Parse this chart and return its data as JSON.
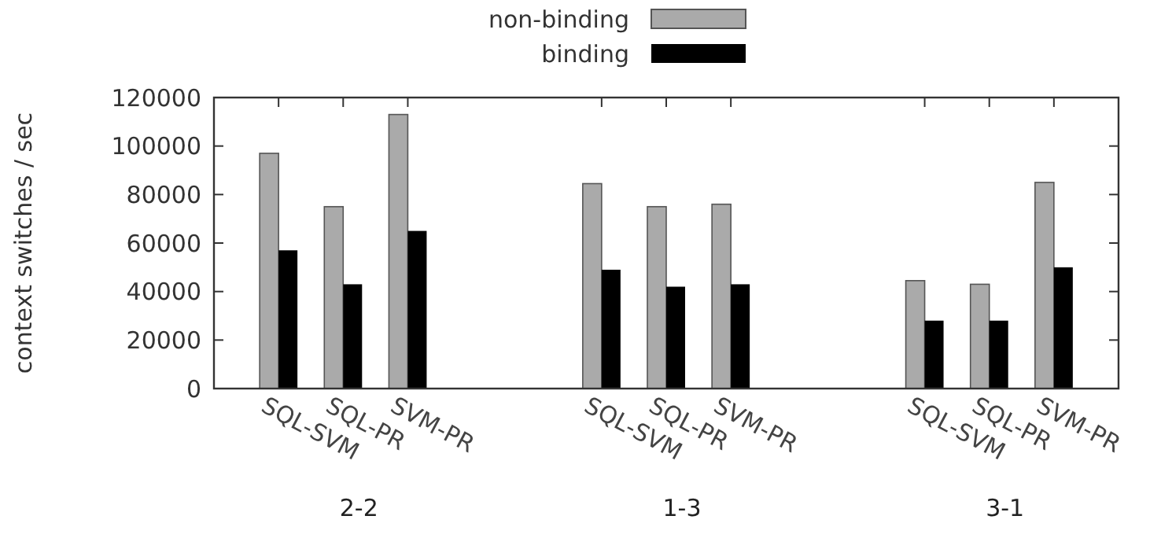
{
  "chart_data": {
    "type": "bar",
    "ylabel": "context switches / sec",
    "categories": [
      "SQL-SVM",
      "SQL-PR",
      "SVM-PR",
      null,
      null,
      "SQL-SVM",
      "SQL-PR",
      "SVM-PR",
      null,
      null,
      "SQL-SVM",
      "SQL-PR",
      "SVM-PR"
    ],
    "series": [
      {
        "name": "non-binding",
        "color": "#aaaaaa",
        "values": [
          97000,
          75000,
          113000,
          null,
          null,
          84500,
          75000,
          76000,
          null,
          null,
          44500,
          43000,
          85000
        ]
      },
      {
        "name": "binding",
        "color": "#000000",
        "values": [
          57000,
          43000,
          65000,
          null,
          null,
          49000,
          42000,
          43000,
          null,
          null,
          28000,
          28000,
          50000
        ]
      }
    ],
    "ylim": [
      0,
      120000
    ],
    "yticks": [
      0,
      20000,
      40000,
      60000,
      80000,
      100000,
      120000
    ],
    "annotations": [
      "2-2",
      "1-3",
      "3-1"
    ],
    "legend": "top",
    "grid": false
  }
}
